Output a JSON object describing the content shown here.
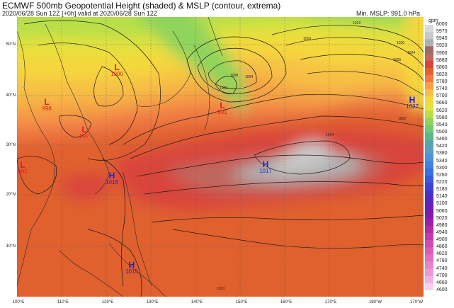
{
  "header": {
    "title": "ECMWF 500mb Geopotential Height (shaded) & MSLP (contour, extrema)",
    "subtitle": "2020/06/28 Sun 12Z [+0h] valid at 2020/06/28 Sun 12Z",
    "min_mslp": "Min. MSLP: 991.0 hPa"
  },
  "axes": {
    "lat_labels": [
      "50°N",
      "40°N",
      "30°N",
      "20°N",
      "10°N"
    ],
    "lon_labels": [
      "100°E",
      "110°E",
      "120°E",
      "130°E",
      "140°E",
      "150°E",
      "160°E",
      "170°E",
      "180°W",
      "170°W"
    ]
  },
  "colorbar": {
    "unit": "gpm",
    "ticks": [
      "6000",
      "5970",
      "5940",
      "5920",
      "5900",
      "5880",
      "5860",
      "5820",
      "5780",
      "5740",
      "5700",
      "5660",
      "5620",
      "5580",
      "5540",
      "5500",
      "5460",
      "5420",
      "5380",
      "5340",
      "5300",
      "5260",
      "5220",
      "5180",
      "5140",
      "5100",
      "5060",
      "5020",
      "4980",
      "4940",
      "4900",
      "4860",
      "4820",
      "4780",
      "4740",
      "4700",
      "4660",
      "4600"
    ],
    "colors": [
      "#d9d9d9",
      "#c8c8c8",
      "#b0b0b0",
      "#9f6a63",
      "#c0675f",
      "#d9443a",
      "#e0612f",
      "#f07a45",
      "#f5a145",
      "#f7c045",
      "#f5d73c",
      "#e3e23e",
      "#b7df4a",
      "#8fd45b",
      "#6fcb70",
      "#58b989",
      "#55a8a8",
      "#5c9dc6",
      "#4e92d6",
      "#3e83e0",
      "#3a6fe0",
      "#3a5adb",
      "#3d43d4",
      "#4a32c8",
      "#5a25bd",
      "#6e1cb3",
      "#8219aa",
      "#9a1fa6",
      "#b22aa6",
      "#c03aae",
      "#cc4ab5",
      "#d75cbd",
      "#df6fc5",
      "#e683ce",
      "#ec98d8",
      "#f2b0e3",
      "#f8d0ef"
    ]
  },
  "systems": [
    {
      "type": "L",
      "value": "1000",
      "kind": "low"
    },
    {
      "type": "L",
      "value": "998",
      "kind": "low"
    },
    {
      "type": "L",
      "value": "997",
      "kind": "low"
    },
    {
      "type": "L",
      "value": "995",
      "kind": "low"
    },
    {
      "type": "L",
      "value": "991",
      "kind": "low"
    },
    {
      "type": "H",
      "value": "1016",
      "kind": "high"
    },
    {
      "type": "H",
      "value": "1017",
      "kind": "high"
    },
    {
      "type": "H",
      "value": "1015",
      "kind": "high"
    },
    {
      "type": "H",
      "value": "1027",
      "kind": "high"
    }
  ],
  "contour_labels": [
    "1012",
    "1016",
    "1020",
    "1024",
    "1026",
    "1008",
    "1004",
    "1002",
    "1014",
    "1022",
    "1010"
  ]
}
